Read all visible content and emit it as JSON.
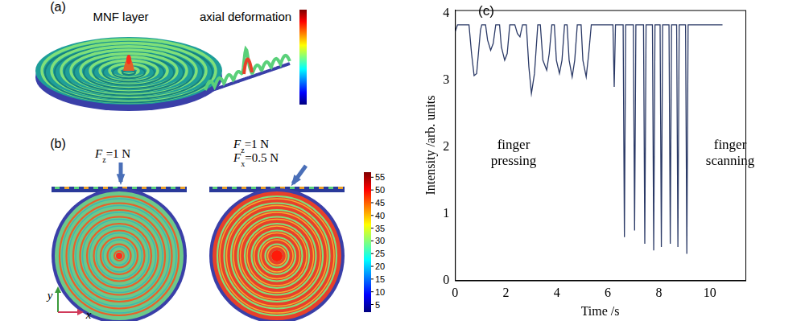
{
  "panel_a": {
    "label": "(a)",
    "captions": [
      "MNF layer",
      "axial deformation"
    ]
  },
  "panel_b": {
    "label": "(b)",
    "loads": [
      [
        {
          "base": "F",
          "sub": "z",
          "rest": "=1 N"
        }
      ],
      [
        {
          "base": "F",
          "sub": "z",
          "rest": "=1 N"
        },
        {
          "base": "F",
          "sub": "x",
          "rest": "=0.5 N"
        }
      ]
    ],
    "axes": [
      "y",
      "x"
    ],
    "colorbar": {
      "range": [
        2,
        57
      ],
      "ticks": [
        5,
        10,
        15,
        20,
        25,
        30,
        35,
        40,
        45,
        50,
        55
      ]
    }
  },
  "chart_data": {
    "panel_label": "(c)",
    "type": "line",
    "x_label": "Time /s",
    "y_label": "Intensity /arb. units",
    "xlim": [
      0,
      11.4
    ],
    "xticks": [
      0,
      2,
      4,
      6,
      8,
      10
    ],
    "ylim": [
      0,
      4.05
    ],
    "yticks": [
      0,
      1,
      2,
      3,
      4
    ],
    "grid": false,
    "color": "#2b3a67",
    "x": [
      0,
      0.1,
      0.55,
      0.65,
      0.75,
      0.85,
      1.0,
      1.05,
      1.2,
      1.28,
      1.4,
      1.5,
      1.6,
      1.75,
      1.82,
      1.95,
      2.05,
      2.15,
      2.35,
      2.45,
      2.55,
      2.65,
      2.8,
      2.9,
      3.0,
      3.12,
      3.25,
      3.35,
      3.45,
      3.6,
      3.7,
      3.8,
      3.9,
      3.98,
      4.1,
      4.2,
      4.3,
      4.4,
      4.48,
      4.6,
      4.7,
      4.8,
      4.95,
      5.02,
      5.15,
      5.25,
      5.35,
      6.2,
      6.25,
      6.3,
      6.6,
      6.65,
      6.7,
      7.0,
      7.05,
      7.1,
      7.4,
      7.45,
      7.5,
      7.75,
      7.8,
      7.85,
      8.05,
      8.1,
      8.15,
      8.4,
      8.45,
      8.5,
      8.7,
      8.75,
      8.8,
      9.05,
      9.1,
      9.15,
      10.5
    ],
    "values": [
      3.72,
      3.83,
      3.83,
      3.4,
      3.07,
      3.1,
      3.75,
      3.83,
      3.83,
      3.6,
      3.45,
      3.55,
      3.83,
      3.83,
      3.5,
      3.3,
      3.4,
      3.83,
      3.83,
      3.7,
      3.65,
      3.83,
      3.83,
      3.2,
      2.8,
      3.1,
      3.83,
      3.83,
      3.3,
      3.15,
      3.4,
      3.83,
      3.83,
      3.3,
      3.1,
      3.3,
      3.83,
      3.83,
      3.3,
      3.05,
      3.3,
      3.83,
      3.83,
      3.3,
      3.05,
      3.4,
      3.83,
      3.83,
      2.9,
      3.83,
      3.83,
      0.65,
      3.83,
      3.83,
      0.75,
      3.83,
      3.83,
      0.55,
      3.83,
      3.83,
      0.45,
      3.83,
      3.83,
      0.5,
      3.83,
      3.83,
      0.55,
      3.83,
      3.83,
      0.5,
      3.83,
      3.83,
      0.4,
      3.83,
      3.83
    ],
    "annotations": [
      {
        "text": "finger pressing",
        "x": 2.3,
        "y": 1.9
      },
      {
        "text": "finger scanning",
        "x": 10.8,
        "y": 1.9
      }
    ]
  }
}
